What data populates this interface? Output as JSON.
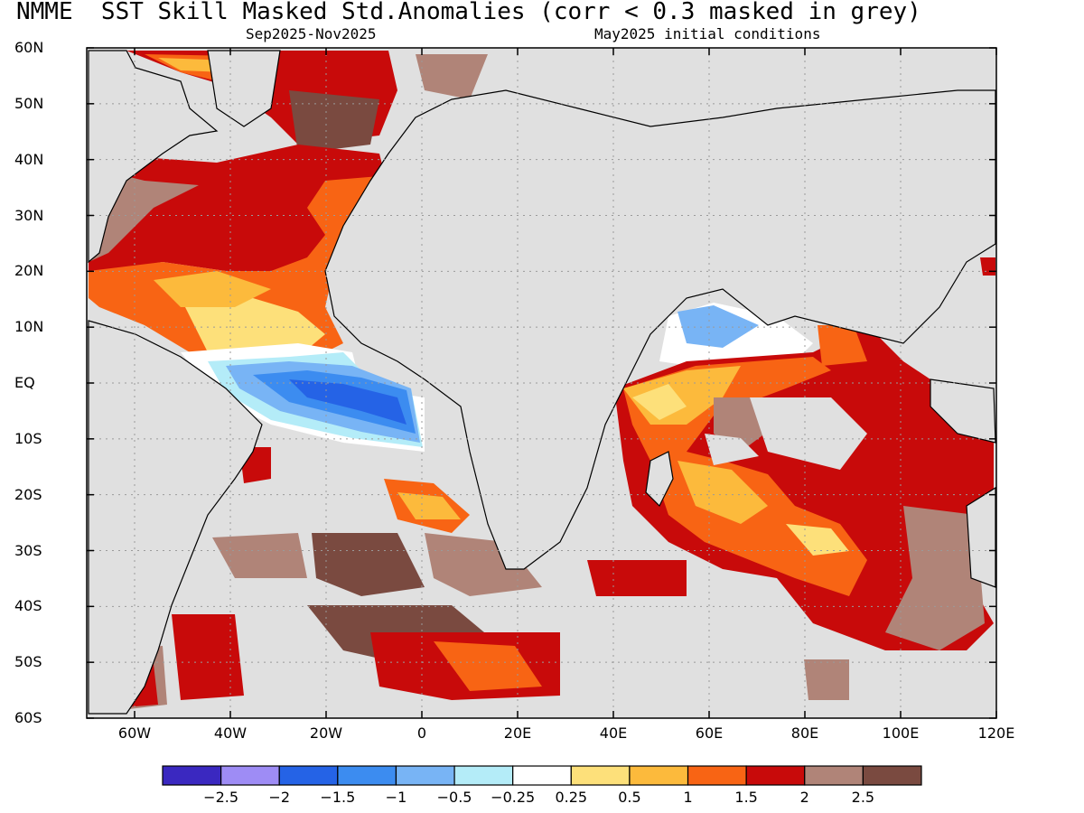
{
  "header": {
    "title": "NMME  SST Skill Masked Std.Anomalies (corr < 0.3 masked in grey)",
    "period": "Sep2025-Nov2025",
    "init": "May2025 initial conditions"
  },
  "map": {
    "lat_range": [
      -60,
      60
    ],
    "lon_range": [
      -70,
      120
    ],
    "lat_ticks": [
      "60N",
      "50N",
      "40N",
      "30N",
      "20N",
      "10N",
      "EQ",
      "10S",
      "20S",
      "30S",
      "40S",
      "50S",
      "60S"
    ],
    "lon_ticks": [
      "60W",
      "40W",
      "20W",
      "0",
      "20E",
      "40E",
      "60E",
      "80E",
      "100E",
      "120E"
    ],
    "mask_color": "#e0e0e0",
    "land_color": "#e0e0e0",
    "grid": "dotted"
  },
  "colorbar": {
    "colors": [
      "#3a28c0",
      "#9e8cf5",
      "#2563e6",
      "#3c8cf0",
      "#78b4f5",
      "#b4ecf8",
      "#ffffff",
      "#fde07a",
      "#fcba3c",
      "#f86414",
      "#c80a0a",
      "#b08478",
      "#7a4a40"
    ],
    "labels": [
      "-2.5",
      "-2",
      "-1.5",
      "-1",
      "-0.5",
      "-0.25",
      "0.25",
      "0.5",
      "1",
      "1.5",
      "2",
      "2.5"
    ]
  }
}
